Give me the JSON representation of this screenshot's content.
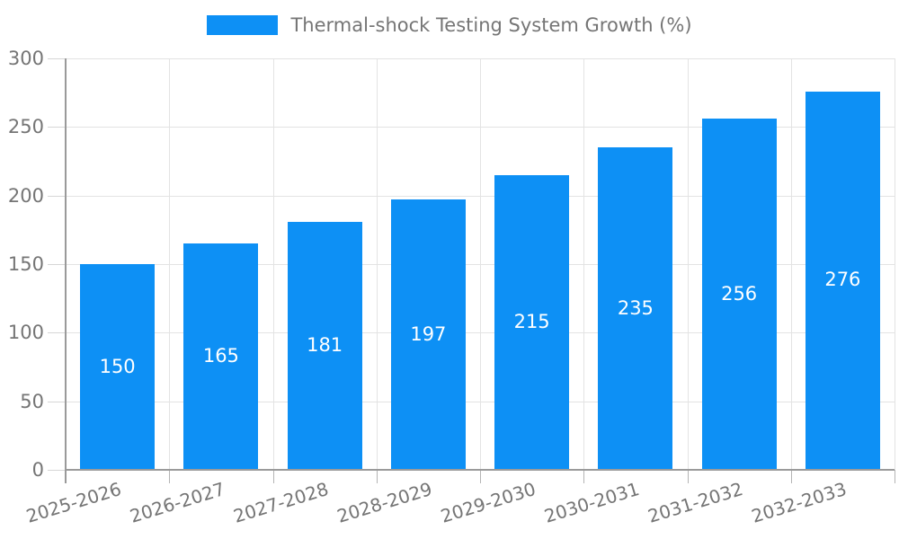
{
  "chart_data": {
    "type": "bar",
    "title": "",
    "legend": "Thermal-shock Testing System Growth (%)",
    "legend_position": "top",
    "categories": [
      "2025-2026",
      "2026-2027",
      "2027-2028",
      "2028-2029",
      "2029-2030",
      "2030-2031",
      "2031-2032",
      "2032-2033"
    ],
    "values": [
      150,
      165,
      181,
      197,
      215,
      235,
      256,
      276
    ],
    "xlabel": "",
    "ylabel": "",
    "ylim": [
      0,
      300
    ],
    "yticks": [
      0,
      50,
      100,
      150,
      200,
      250,
      300
    ],
    "grid": true,
    "value_labels": "inside-center"
  },
  "colors": {
    "bar": "#0d90f5",
    "bar_value_text": "#ffffff",
    "axis_text": "#757575",
    "grid": "#e3e3e3",
    "axis_line": "#9a9a9a",
    "background": "#ffffff"
  }
}
